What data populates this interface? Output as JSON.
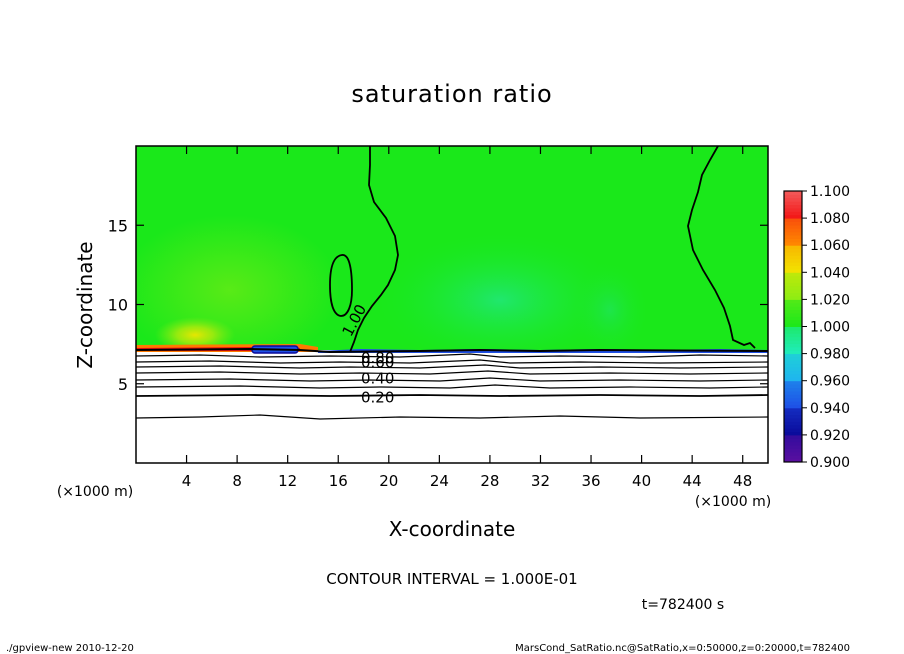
{
  "chart_data": {
    "type": "heatmap",
    "title": "saturation ratio",
    "xlabel": "X-coordinate",
    "ylabel": "Z-coordinate",
    "x_unit": "(×1000 m)",
    "y_unit": "(×1000 m)",
    "xlim": [
      0,
      50
    ],
    "ylim": [
      0,
      20
    ],
    "x_ticks": [
      4,
      8,
      12,
      16,
      20,
      24,
      28,
      32,
      36,
      40,
      44,
      48
    ],
    "y_ticks": [
      5,
      10,
      15
    ],
    "contour_interval_text": "CONTOUR INTERVAL = 1.000E-01",
    "time_text": "t=782400 s",
    "contour_labels": [
      {
        "text": "1.00",
        "x": 17.0,
        "z": 8.3
      },
      {
        "text": "0.80",
        "x": 17.8,
        "z": 6.7
      },
      {
        "text": "0.60",
        "x": 17.8,
        "z": 6.4
      },
      {
        "text": "0.40",
        "x": 17.8,
        "z": 5.4
      },
      {
        "text": "0.20",
        "x": 17.8,
        "z": 4.2
      }
    ],
    "colorbar": {
      "levels": [
        0.9,
        0.92,
        0.94,
        0.96,
        0.98,
        1.0,
        1.02,
        1.04,
        1.06,
        1.08,
        1.1
      ],
      "labels": [
        "0.900",
        "0.920",
        "0.940",
        "0.960",
        "0.980",
        "1.000",
        "1.020",
        "1.040",
        "1.060",
        "1.080",
        "1.100"
      ],
      "colors": [
        "#5a0fa0",
        "#0a0a9a",
        "#1e4fe6",
        "#1fb4f0",
        "#20ecbe",
        "#1ae81a",
        "#8ced14",
        "#f2e400",
        "#ff8a00",
        "#f31515",
        "#f2a0a0"
      ]
    },
    "field_summary": {
      "cloud_top_z": 7.1,
      "interior_value": 1.0,
      "lower_region_value": "< 0.20"
    }
  },
  "footer": {
    "left": "./gpview-new   2010-12-20",
    "right": "MarsCond_SatRatio.nc@SatRatio,x=0:50000,z=0:20000,t=782400"
  }
}
